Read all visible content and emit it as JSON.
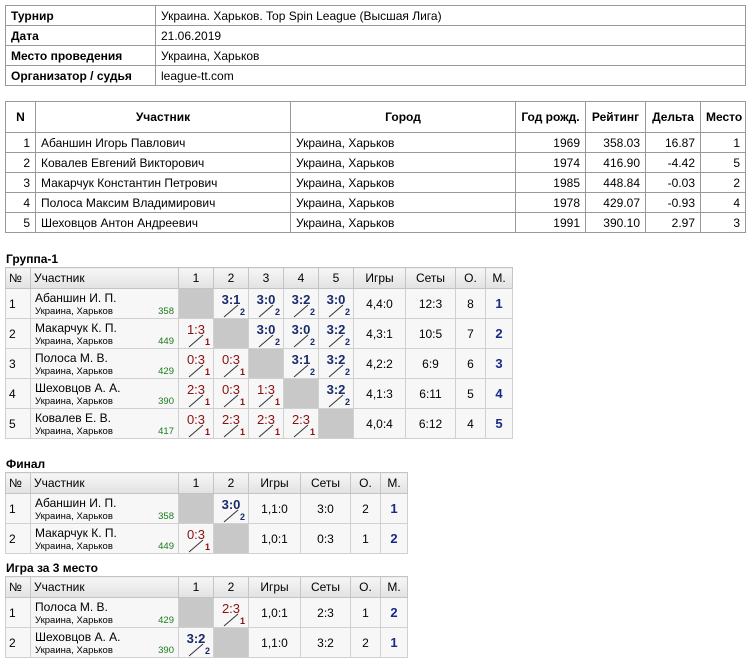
{
  "info": {
    "rows": [
      [
        "Турнир",
        "Украина. Харьков. Top Spin League (Высшая Лига)"
      ],
      [
        "Дата",
        "21.06.2019"
      ],
      [
        "Место проведения",
        "Украина, Харьков"
      ],
      [
        "Организатор / судья",
        "league-tt.com"
      ]
    ]
  },
  "participants": {
    "headers": [
      "N",
      "Участник",
      "Город",
      "Год рожд.",
      "Рейтинг",
      "Дельта",
      "Место"
    ],
    "rows": [
      [
        "1",
        "Абаншин Игорь Павлович",
        "Украина, Харьков",
        "1969",
        "358.03",
        "16.87",
        "1"
      ],
      [
        "2",
        "Ковалев Евгений Викторович",
        "Украина, Харьков",
        "1974",
        "416.90",
        "-4.42",
        "5"
      ],
      [
        "3",
        "Макарчук Константин Петрович",
        "Украина, Харьков",
        "1985",
        "448.84",
        "-0.03",
        "2"
      ],
      [
        "4",
        "Полоса Максим Владимирович",
        "Украина, Харьков",
        "1978",
        "429.07",
        "-0.93",
        "4"
      ],
      [
        "5",
        "Шеховцов Антон Андреевич",
        "Украина, Харьков",
        "1991",
        "390.10",
        "2.97",
        "3"
      ]
    ]
  },
  "sections": [
    {
      "title": "Группа-1",
      "headers": [
        "№",
        "Участник",
        "1",
        "2",
        "3",
        "4",
        "5",
        "Игры",
        "Сеты",
        "О.",
        "М."
      ],
      "rows": [
        {
          "num": "1",
          "name": "Абаншин И. П.",
          "city": "Украина, Харьков",
          "rating": "358",
          "cells": [
            null,
            {
              "score": "3:1",
              "points": "2"
            },
            {
              "score": "3:0",
              "points": "2"
            },
            {
              "score": "3:2",
              "points": "2"
            },
            {
              "score": "3:0",
              "points": "2"
            }
          ],
          "games": "4,4:0",
          "sets": "12:3",
          "o": "8",
          "m": "1"
        },
        {
          "num": "2",
          "name": "Макарчук К. П.",
          "city": "Украина, Харьков",
          "rating": "449",
          "cells": [
            {
              "score": "1:3",
              "points": "1"
            },
            null,
            {
              "score": "3:0",
              "points": "2"
            },
            {
              "score": "3:0",
              "points": "2"
            },
            {
              "score": "3:2",
              "points": "2"
            }
          ],
          "games": "4,3:1",
          "sets": "10:5",
          "o": "7",
          "m": "2"
        },
        {
          "num": "3",
          "name": "Полоса М. В.",
          "city": "Украина, Харьков",
          "rating": "429",
          "cells": [
            {
              "score": "0:3",
              "points": "1"
            },
            {
              "score": "0:3",
              "points": "1"
            },
            null,
            {
              "score": "3:1",
              "points": "2"
            },
            {
              "score": "3:2",
              "points": "2"
            }
          ],
          "games": "4,2:2",
          "sets": "6:9",
          "o": "6",
          "m": "3"
        },
        {
          "num": "4",
          "name": "Шеховцов А. А.",
          "city": "Украина, Харьков",
          "rating": "390",
          "cells": [
            {
              "score": "2:3",
              "points": "1"
            },
            {
              "score": "0:3",
              "points": "1"
            },
            {
              "score": "1:3",
              "points": "1"
            },
            null,
            {
              "score": "3:2",
              "points": "2"
            }
          ],
          "games": "4,1:3",
          "sets": "6:11",
          "o": "5",
          "m": "4"
        },
        {
          "num": "5",
          "name": "Ковалев Е. В.",
          "city": "Украина, Харьков",
          "rating": "417",
          "cells": [
            {
              "score": "0:3",
              "points": "1"
            },
            {
              "score": "2:3",
              "points": "1"
            },
            {
              "score": "2:3",
              "points": "1"
            },
            {
              "score": "2:3",
              "points": "1"
            },
            null
          ],
          "games": "4,0:4",
          "sets": "6:12",
          "o": "4",
          "m": "5"
        }
      ]
    },
    {
      "title": "Финал",
      "headers": [
        "№",
        "Участник",
        "1",
        "2",
        "Игры",
        "Сеты",
        "О.",
        "М."
      ],
      "rows": [
        {
          "num": "1",
          "name": "Абаншин И. П.",
          "city": "Украина, Харьков",
          "rating": "358",
          "cells": [
            null,
            {
              "score": "3:0",
              "points": "2"
            }
          ],
          "games": "1,1:0",
          "sets": "3:0",
          "o": "2",
          "m": "1"
        },
        {
          "num": "2",
          "name": "Макарчук К. П.",
          "city": "Украина, Харьков",
          "rating": "449",
          "cells": [
            {
              "score": "0:3",
              "points": "1"
            },
            null
          ],
          "games": "1,0:1",
          "sets": "0:3",
          "o": "1",
          "m": "2"
        }
      ]
    },
    {
      "title": "Игра за 3 место",
      "headers": [
        "№",
        "Участник",
        "1",
        "2",
        "Игры",
        "Сеты",
        "О.",
        "М."
      ],
      "rows": [
        {
          "num": "1",
          "name": "Полоса М. В.",
          "city": "Украина, Харьков",
          "rating": "429",
          "cells": [
            null,
            {
              "score": "2:3",
              "points": "1"
            }
          ],
          "games": "1,0:1",
          "sets": "2:3",
          "o": "1",
          "m": "2"
        },
        {
          "num": "2",
          "name": "Шеховцов А. А.",
          "city": "Украина, Харьков",
          "rating": "390",
          "cells": [
            {
              "score": "3:2",
              "points": "2"
            },
            null
          ],
          "games": "1,1:0",
          "sets": "3:2",
          "o": "2",
          "m": "1"
        }
      ]
    }
  ]
}
